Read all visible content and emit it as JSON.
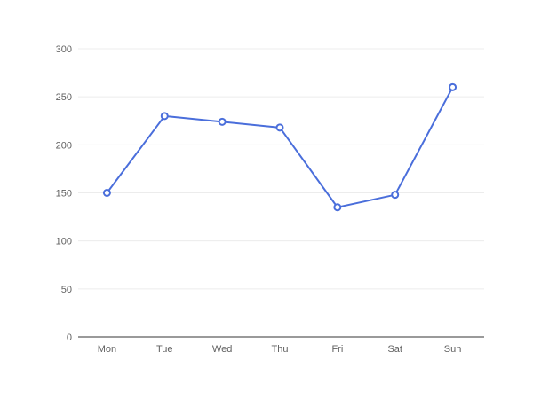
{
  "chart_data": {
    "type": "line",
    "title": "",
    "xlabel": "",
    "ylabel": "",
    "categories": [
      "Mon",
      "Tue",
      "Wed",
      "Thu",
      "Fri",
      "Sat",
      "Sun"
    ],
    "series": [
      {
        "name": "series-1",
        "values": [
          150,
          230,
          224,
          218,
          135,
          148,
          260
        ]
      }
    ],
    "ylim": [
      0,
      300
    ],
    "yticks": [
      0,
      50,
      100,
      150,
      200,
      250,
      300
    ],
    "grid": true,
    "legend": false,
    "marker": "open-circle",
    "colors": {
      "line": "#4a6edb",
      "marker_fill": "#ffffff",
      "gridline": "#ececec",
      "axis_line": "#9a9a9a",
      "tick_label": "#616161",
      "background": "#ffffff"
    }
  }
}
